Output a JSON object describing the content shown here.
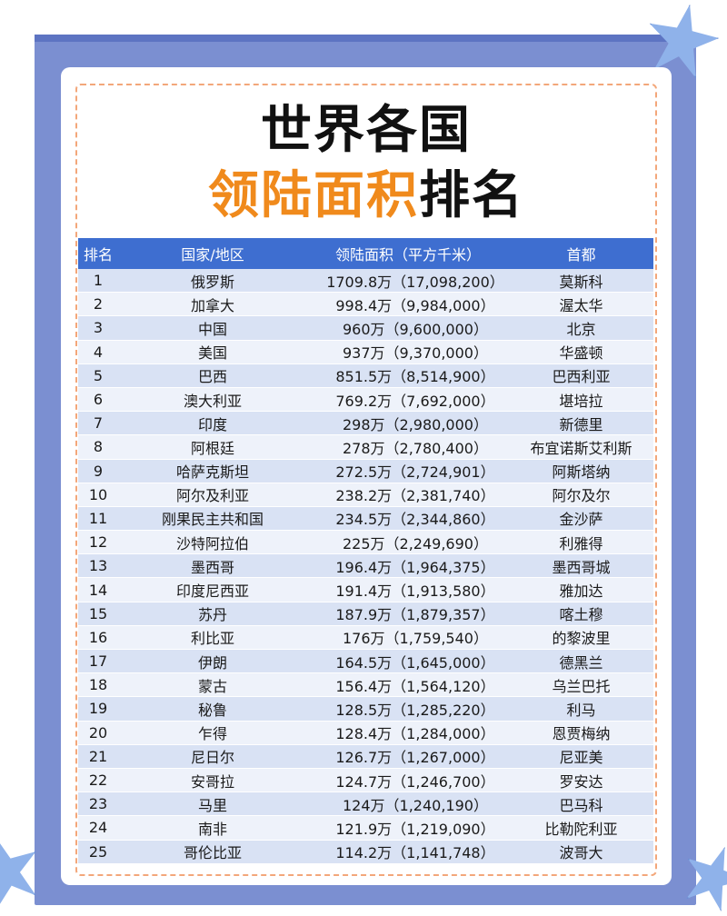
{
  "title": {
    "line1": "世界各国",
    "line2_highlight": "领陆面积",
    "line2_rest": "排名"
  },
  "table": {
    "headers": [
      "排名",
      "国家/地区",
      "领陆面积（平方千米）",
      "首都"
    ],
    "rows": [
      {
        "rank": "1",
        "country": "俄罗斯",
        "area": "1709.8万（17,098,200）",
        "capital": "莫斯科"
      },
      {
        "rank": "2",
        "country": "加拿大",
        "area": "998.4万（9,984,000）",
        "capital": "渥太华"
      },
      {
        "rank": "3",
        "country": "中国",
        "area": "960万（9,600,000）",
        "capital": "北京"
      },
      {
        "rank": "4",
        "country": "美国",
        "area": "937万（9,370,000）",
        "capital": "华盛顿"
      },
      {
        "rank": "5",
        "country": "巴西",
        "area": "851.5万（8,514,900）",
        "capital": "巴西利亚"
      },
      {
        "rank": "6",
        "country": "澳大利亚",
        "area": "769.2万（7,692,000）",
        "capital": "堪培拉"
      },
      {
        "rank": "7",
        "country": "印度",
        "area": "298万（2,980,000）",
        "capital": "新德里"
      },
      {
        "rank": "8",
        "country": "阿根廷",
        "area": "278万（2,780,400）",
        "capital": "布宜诺斯艾利斯"
      },
      {
        "rank": "9",
        "country": "哈萨克斯坦",
        "area": "272.5万（2,724,901）",
        "capital": "阿斯塔纳"
      },
      {
        "rank": "10",
        "country": "阿尔及利亚",
        "area": "238.2万（2,381,740）",
        "capital": "阿尔及尔"
      },
      {
        "rank": "11",
        "country": "刚果民主共和国",
        "area": "234.5万（2,344,860）",
        "capital": "金沙萨"
      },
      {
        "rank": "12",
        "country": "沙特阿拉伯",
        "area": "225万（2,249,690）",
        "capital": "利雅得"
      },
      {
        "rank": "13",
        "country": "墨西哥",
        "area": "196.4万（1,964,375）",
        "capital": "墨西哥城"
      },
      {
        "rank": "14",
        "country": "印度尼西亚",
        "area": "191.4万（1,913,580）",
        "capital": "雅加达"
      },
      {
        "rank": "15",
        "country": "苏丹",
        "area": "187.9万（1,879,357）",
        "capital": "喀土穆"
      },
      {
        "rank": "16",
        "country": "利比亚",
        "area": "176万（1,759,540）",
        "capital": "的黎波里"
      },
      {
        "rank": "17",
        "country": "伊朗",
        "area": "164.5万（1,645,000）",
        "capital": "德黑兰"
      },
      {
        "rank": "18",
        "country": "蒙古",
        "area": "156.4万（1,564,120）",
        "capital": "乌兰巴托"
      },
      {
        "rank": "19",
        "country": "秘鲁",
        "area": "128.5万（1,285,220）",
        "capital": "利马"
      },
      {
        "rank": "20",
        "country": "乍得",
        "area": "128.4万（1,284,000）",
        "capital": "恩贾梅纳"
      },
      {
        "rank": "21",
        "country": "尼日尔",
        "area": "126.7万（1,267,000）",
        "capital": "尼亚美"
      },
      {
        "rank": "22",
        "country": "安哥拉",
        "area": "124.7万（1,246,700）",
        "capital": "罗安达"
      },
      {
        "rank": "23",
        "country": "马里",
        "area": "124万（1,240,190）",
        "capital": "巴马科"
      },
      {
        "rank": "24",
        "country": "南非",
        "area": "121.9万（1,219,090）",
        "capital": "比勒陀利亚"
      },
      {
        "rank": "25",
        "country": "哥伦比亚",
        "area": "114.2万（1,141,748）",
        "capital": "波哥大"
      }
    ]
  },
  "colors": {
    "frame": "#7b8fd1",
    "header": "#3e6ed0",
    "row_odd": "#d9e2f4",
    "row_even": "#eef2fa",
    "title_highlight": "#f08a1c",
    "dash_border": "#f3a77a",
    "star": "#8fb2ea"
  },
  "decor": {
    "stars": [
      "star-icon",
      "star-icon",
      "star-icon"
    ]
  }
}
